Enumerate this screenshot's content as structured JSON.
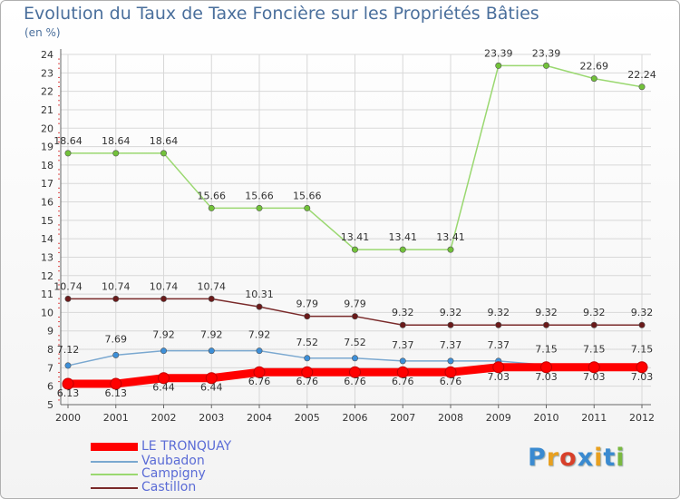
{
  "title": "Evolution du Taux de Taxe Foncière sur les Propriétés Bâties",
  "subtitle": "(en %)",
  "logo": {
    "text": "Proxiti",
    "letters": [
      "P",
      "r",
      "o",
      "x",
      "i",
      "t",
      "i"
    ],
    "colors": [
      "#3a8ad0",
      "#e8a020",
      "#d8402a",
      "#3a8ad0",
      "#e8a020",
      "#3a8ad0",
      "#7ab840"
    ]
  },
  "chart_data": {
    "type": "line",
    "title": "Evolution du Taux de Taxe Foncière sur les Propriétés Bâties",
    "ylabel": "(en %)",
    "xlabel": "",
    "x": [
      "2000",
      "2001",
      "2002",
      "2003",
      "2004",
      "2005",
      "2006",
      "2007",
      "2008",
      "2009",
      "2010",
      "2011",
      "2012"
    ],
    "ylim": [
      5,
      24
    ],
    "yticks": [
      5,
      6,
      7,
      8,
      9,
      10,
      11,
      12,
      13,
      14,
      15,
      16,
      17,
      18,
      19,
      20,
      21,
      22,
      23,
      24
    ],
    "grid": true,
    "legend": "bottom-left",
    "series": [
      {
        "name": "LE TRONQUAY",
        "color": "#ff0000",
        "marker": "#ff0000",
        "labels": [
          "6.13",
          "6.13",
          "6.44",
          "6.44",
          "6.76",
          "6.76",
          "6.76",
          "6.76",
          "6.76",
          "7.03",
          "7.03",
          "7.03",
          "7.03"
        ],
        "values": [
          6.13,
          6.13,
          6.44,
          6.44,
          6.76,
          6.76,
          6.76,
          6.76,
          6.76,
          7.03,
          7.03,
          7.03,
          7.03
        ]
      },
      {
        "name": "Vaubadon",
        "color": "#7aa8d0",
        "marker": "#3d8fd8",
        "labels": [
          "7.12",
          "7.69",
          "7.92",
          "7.92",
          "7.92",
          "7.52",
          "7.52",
          "7.37",
          "7.37",
          "7.37",
          "7.15",
          "7.15",
          "7.15"
        ],
        "values": [
          7.12,
          7.69,
          7.92,
          7.92,
          7.92,
          7.52,
          7.52,
          7.37,
          7.37,
          7.37,
          7.15,
          7.15,
          7.15
        ]
      },
      {
        "name": "Campigny",
        "color": "#9ad870",
        "marker": "#72c23a",
        "labels": [
          "18.64",
          "18.64",
          "18.64",
          "15.66",
          "15.66",
          "15.66",
          "13.41",
          "13.41",
          "13.41",
          "23.39",
          "23.39",
          "22.69",
          "22.24"
        ],
        "values": [
          18.64,
          18.64,
          18.64,
          15.66,
          15.66,
          15.66,
          13.41,
          13.41,
          13.41,
          23.39,
          23.39,
          22.69,
          22.24
        ]
      },
      {
        "name": "Castillon",
        "color": "#7a2a2a",
        "marker": "#6a1a1a",
        "labels": [
          "10.74",
          "10.74",
          "10.74",
          "10.74",
          "10.31",
          "9.79",
          "9.79",
          "9.32",
          "9.32",
          "9.32",
          "9.32",
          "9.32",
          "9.32"
        ],
        "values": [
          10.74,
          10.74,
          10.74,
          10.74,
          10.31,
          9.79,
          9.79,
          9.32,
          9.32,
          9.32,
          9.32,
          9.32,
          9.32
        ]
      }
    ]
  }
}
